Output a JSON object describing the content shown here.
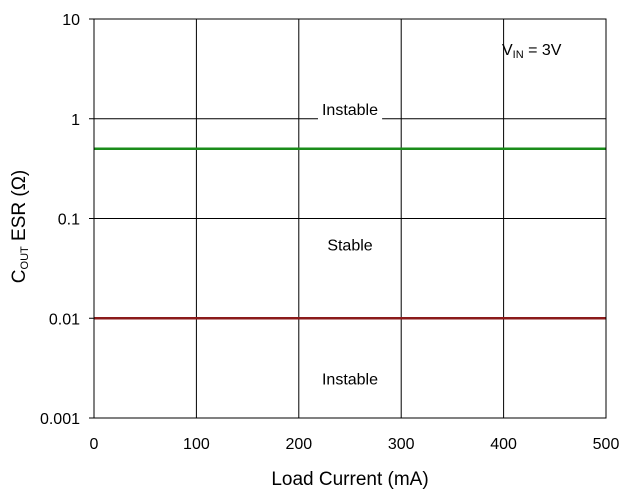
{
  "chart_data": {
    "type": "line",
    "title": "",
    "xlabel": "Load Current (mA)",
    "ylabel": {
      "main": "C",
      "sub": "OUT",
      "rest": " ESR (Ω)"
    },
    "xlim": [
      0,
      500
    ],
    "ylim": [
      0.001,
      10
    ],
    "yscale": "log",
    "grid": true,
    "x_ticks": [
      "0",
      "100",
      "200",
      "300",
      "400",
      "500"
    ],
    "y_ticks": [
      "0.001",
      "0.01",
      "0.1",
      "1",
      "10"
    ],
    "series": [
      {
        "color": "#1a8c1a",
        "x": [
          0,
          500
        ],
        "y": [
          0.5,
          0.5
        ]
      },
      {
        "color": "#8b1a1a",
        "x": [
          0,
          500
        ],
        "y": [
          0.01,
          0.01
        ]
      }
    ],
    "annotations": [
      {
        "text": "Instable",
        "x": 250,
        "y": 1.25
      },
      {
        "text": "Stable",
        "x": 250,
        "y": 0.055
      },
      {
        "text": "Instable",
        "x": 250,
        "y": 0.0025
      }
    ],
    "condition": {
      "main": "V",
      "sub": "IN",
      "rest": " = 3V"
    }
  }
}
